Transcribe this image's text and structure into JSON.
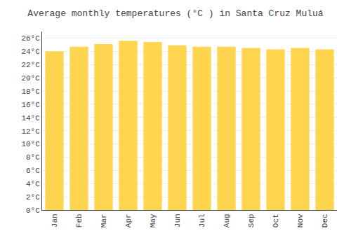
{
  "chart_data": {
    "type": "bar",
    "title": "Average monthly temperatures (°C ) in Santa Cruz Muluá",
    "categories": [
      "Jan",
      "Feb",
      "Mar",
      "Apr",
      "May",
      "Jun",
      "Jul",
      "Aug",
      "Sep",
      "Oct",
      "Nov",
      "Dec"
    ],
    "values": [
      24.0,
      24.7,
      25.1,
      25.6,
      25.4,
      24.9,
      24.7,
      24.7,
      24.5,
      24.3,
      24.5,
      24.3
    ],
    "color": "#FFD44F",
    "ylim": [
      0,
      27
    ],
    "yticks": [
      {
        "value": 0,
        "label": "0°C"
      },
      {
        "value": 2,
        "label": "2°C"
      },
      {
        "value": 4,
        "label": "4°C"
      },
      {
        "value": 6,
        "label": "6°C"
      },
      {
        "value": 8,
        "label": "8°C"
      },
      {
        "value": 10,
        "label": "10°C"
      },
      {
        "value": 12,
        "label": "12°C"
      },
      {
        "value": 14,
        "label": "14°C"
      },
      {
        "value": 16,
        "label": "16°C"
      },
      {
        "value": 18,
        "label": "18°C"
      },
      {
        "value": 20,
        "label": "20°C"
      },
      {
        "value": 22,
        "label": "22°C"
      },
      {
        "value": 24,
        "label": "24°C"
      },
      {
        "value": 26,
        "label": "26°C"
      }
    ],
    "grid": true
  }
}
